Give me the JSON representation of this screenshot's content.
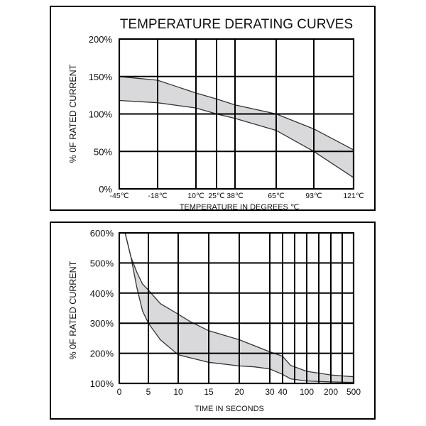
{
  "chart_data": [
    {
      "type": "area",
      "title": "TEMPERATURE DERATING CURVES",
      "xlabel": "TEMPERATURE IN DEGREES ℃",
      "ylabel": "% 0F RATED CURRENT",
      "x_ticks": [
        "-45℃",
        "-18℃",
        "10℃",
        "25℃",
        "38℃",
        "65℃",
        "93℃",
        "121℃"
      ],
      "x_values": [
        -45,
        -18,
        10,
        25,
        38,
        65,
        93,
        121
      ],
      "y_ticks": [
        "0%",
        "50%",
        "100%",
        "150%",
        "200%"
      ],
      "ylim": [
        0,
        200
      ],
      "grid": true,
      "series": [
        {
          "values": [
            150,
            145,
            128,
            120,
            112,
            100,
            80,
            52
          ]
        },
        {
          "values": [
            118,
            115,
            108,
            100,
            94,
            78,
            50,
            15
          ]
        }
      ]
    },
    {
      "type": "area",
      "title": "",
      "xlabel": "TIME IN SECONDS",
      "ylabel": "% 0F RATED CURRENT",
      "x_ticks": [
        "0",
        "5",
        "10",
        "15",
        "20",
        "30",
        "40",
        "100",
        "200",
        "500"
      ],
      "y_ticks": [
        "100%",
        "200%",
        "300%",
        "400%",
        "500%",
        "600%"
      ],
      "ylim": [
        100,
        600
      ],
      "grid": true,
      "series": [
        {
          "x": [
            1,
            2,
            3,
            4,
            5,
            7,
            10,
            12,
            15,
            20,
            25,
            30,
            40,
            60,
            100,
            200,
            500
          ],
          "values": [
            600,
            520,
            470,
            430,
            410,
            365,
            330,
            305,
            275,
            245,
            225,
            205,
            190,
            160,
            140,
            128,
            122
          ]
        },
        {
          "x": [
            1,
            2,
            3,
            4,
            5,
            7,
            10,
            12,
            15,
            20,
            25,
            30,
            40,
            60,
            100,
            200,
            500
          ],
          "values": [
            600,
            520,
            420,
            340,
            300,
            245,
            195,
            185,
            170,
            158,
            155,
            148,
            130,
            115,
            108,
            105,
            103
          ]
        }
      ]
    }
  ]
}
